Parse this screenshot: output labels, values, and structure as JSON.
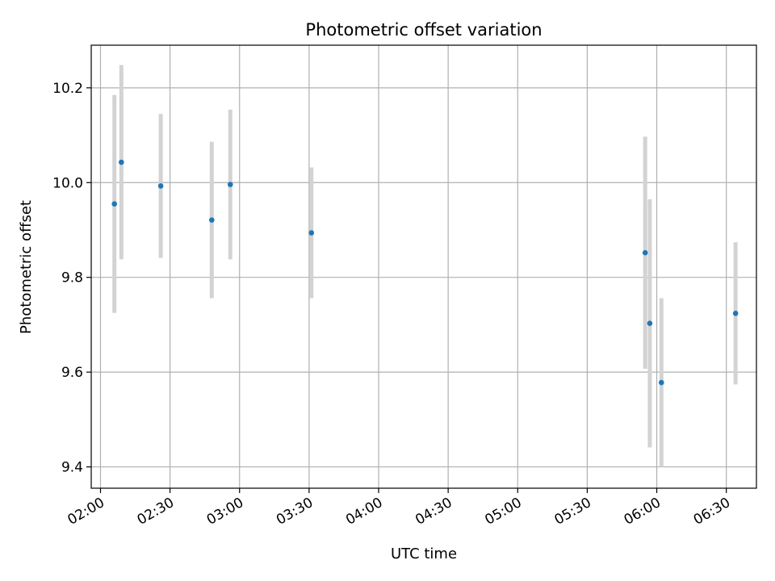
{
  "chart_data": {
    "type": "scatter",
    "title": "Photometric offset variation",
    "xlabel": "UTC time",
    "ylabel": "Photometric offset",
    "x_ticks": [
      "02:00",
      "02:30",
      "03:00",
      "03:30",
      "04:00",
      "04:30",
      "05:00",
      "05:30",
      "06:00",
      "06:30"
    ],
    "y_ticks": [
      "9.4",
      "9.6",
      "9.8",
      "10.0",
      "10.2"
    ],
    "xlim": [
      "01:56",
      "06:43"
    ],
    "ylim": [
      9.355,
      10.29
    ],
    "grid": true,
    "series": [
      {
        "x": [
          "02:06",
          "02:09",
          "02:26",
          "02:48",
          "02:56",
          "03:31",
          "05:55",
          "05:57",
          "06:02",
          "06:34"
        ],
        "y": [
          9.955,
          10.043,
          9.993,
          9.921,
          9.996,
          9.894,
          9.852,
          9.703,
          9.578,
          9.724
        ],
        "err": [
          0.23,
          0.205,
          0.152,
          0.165,
          0.158,
          0.138,
          0.245,
          0.262,
          0.178,
          0.15
        ]
      }
    ],
    "colors": {
      "point": "#1f77b4",
      "errorbar": "#d3d3d3",
      "grid": "#b0b0b0"
    }
  }
}
